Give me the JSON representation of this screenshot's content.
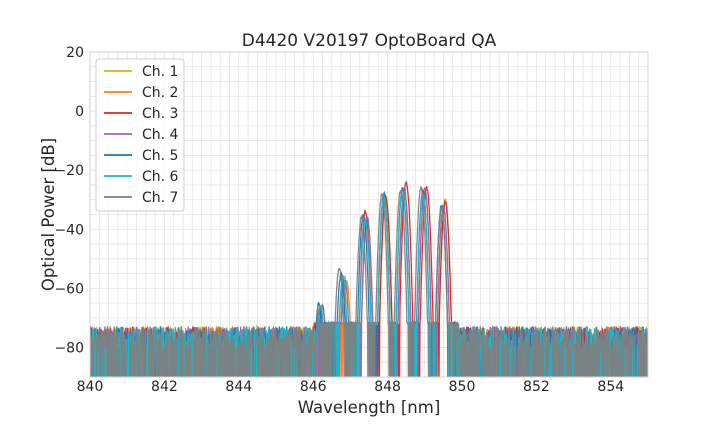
{
  "chart_data": {
    "type": "line",
    "title": "D4420 V20197 OptoBoard QA",
    "xlabel": "Wavelength [nm]",
    "ylabel": "Optical Power [dB]",
    "xlim": [
      840,
      855
    ],
    "ylim": [
      -90,
      20
    ],
    "xticks": [
      840,
      842,
      844,
      846,
      848,
      850,
      852,
      854
    ],
    "yticks": [
      -80,
      -60,
      -40,
      -20,
      0,
      20
    ],
    "x_tick_labels": [
      "840",
      "842",
      "844",
      "846",
      "848",
      "850",
      "852",
      "854"
    ],
    "y_tick_labels": [
      "−80",
      "−60",
      "−40",
      "−20",
      "0",
      "20"
    ],
    "x_minor_step": 0.25,
    "y_minor_step": 5,
    "grid": true,
    "legend_position": "top-left",
    "noise_floor_db": -76,
    "spectrum_edges_nm": [
      846.05,
      849.85
    ],
    "series": [
      {
        "name": "Ch. 1",
        "color": "#bcbd22",
        "peaks": [
          {
            "x": 846.25,
            "y": -66
          },
          {
            "x": 846.85,
            "y": -56
          },
          {
            "x": 847.45,
            "y": -36
          },
          {
            "x": 847.95,
            "y": -29
          },
          {
            "x": 848.45,
            "y": -26
          },
          {
            "x": 849.0,
            "y": -27
          },
          {
            "x": 849.55,
            "y": -30
          }
        ]
      },
      {
        "name": "Ch. 2",
        "color": "#ff7f0e",
        "peaks": [
          {
            "x": 846.25,
            "y": -67
          },
          {
            "x": 846.9,
            "y": -58
          },
          {
            "x": 847.45,
            "y": -37
          },
          {
            "x": 847.95,
            "y": -30
          },
          {
            "x": 848.45,
            "y": -27
          },
          {
            "x": 849.0,
            "y": -27
          },
          {
            "x": 849.5,
            "y": -33
          }
        ]
      },
      {
        "name": "Ch. 3",
        "color": "#d62728",
        "peaks": [
          {
            "x": 846.2,
            "y": -67
          },
          {
            "x": 846.8,
            "y": -57
          },
          {
            "x": 847.4,
            "y": -34
          },
          {
            "x": 847.95,
            "y": -29
          },
          {
            "x": 848.5,
            "y": -24
          },
          {
            "x": 849.05,
            "y": -26
          },
          {
            "x": 849.55,
            "y": -31
          }
        ]
      },
      {
        "name": "Ch. 4",
        "color": "#9467bd",
        "peaks": [
          {
            "x": 846.25,
            "y": -66
          },
          {
            "x": 846.85,
            "y": -57
          },
          {
            "x": 847.45,
            "y": -36
          },
          {
            "x": 847.9,
            "y": -30
          },
          {
            "x": 848.45,
            "y": -27
          },
          {
            "x": 849.0,
            "y": -26
          },
          {
            "x": 849.5,
            "y": -32
          }
        ]
      },
      {
        "name": "Ch. 5",
        "color": "#1f77b4",
        "peaks": [
          {
            "x": 846.15,
            "y": -65
          },
          {
            "x": 846.75,
            "y": -55
          },
          {
            "x": 847.35,
            "y": -35
          },
          {
            "x": 847.9,
            "y": -28
          },
          {
            "x": 848.4,
            "y": -26
          },
          {
            "x": 848.95,
            "y": -27
          },
          {
            "x": 849.45,
            "y": -32
          }
        ]
      },
      {
        "name": "Ch. 6",
        "color": "#17becf",
        "peaks": [
          {
            "x": 846.2,
            "y": -66
          },
          {
            "x": 846.8,
            "y": -56
          },
          {
            "x": 847.4,
            "y": -37
          },
          {
            "x": 847.9,
            "y": -29
          },
          {
            "x": 848.4,
            "y": -27
          },
          {
            "x": 848.95,
            "y": -28
          },
          {
            "x": 849.45,
            "y": -33
          }
        ]
      },
      {
        "name": "Ch. 7",
        "color": "#7f7f7f",
        "peaks": [
          {
            "x": 846.1,
            "y": -65
          },
          {
            "x": 846.7,
            "y": -53
          },
          {
            "x": 847.3,
            "y": -36
          },
          {
            "x": 847.85,
            "y": -28
          },
          {
            "x": 848.35,
            "y": -27
          },
          {
            "x": 848.9,
            "y": -26
          },
          {
            "x": 849.45,
            "y": -33
          }
        ]
      }
    ]
  }
}
